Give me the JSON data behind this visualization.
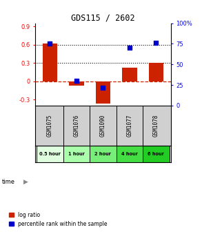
{
  "title": "GDS115 / 2602",
  "samples": [
    "GSM1075",
    "GSM1076",
    "GSM1090",
    "GSM1077",
    "GSM1078"
  ],
  "time_labels": [
    "0.5 hour",
    "1 hour",
    "2 hour",
    "4 hour",
    "6 hour"
  ],
  "time_colors": [
    "#dfffdf",
    "#aaffaa",
    "#77ee77",
    "#44dd44",
    "#22cc22"
  ],
  "log_ratios": [
    0.62,
    -0.07,
    -0.37,
    0.22,
    0.3
  ],
  "percentile_ranks": [
    75,
    30,
    22,
    70,
    76
  ],
  "bar_color": "#cc2200",
  "dot_color": "#0000cc",
  "ylim_left": [
    -0.4,
    0.95
  ],
  "ylim_right": [
    0,
    100
  ],
  "yticks_left": [
    -0.3,
    0.0,
    0.3,
    0.6,
    0.9
  ],
  "yticks_right": [
    0,
    25,
    50,
    75,
    100
  ],
  "ytick_labels_left": [
    "-0.3",
    "0",
    "0.3",
    "0.6",
    "0.9"
  ],
  "ytick_labels_right": [
    "0",
    "25",
    "50",
    "75",
    "100%"
  ],
  "hlines": [
    0.6,
    0.3
  ],
  "sample_bg_color": "#d0d0d0",
  "bar_width": 0.55,
  "dot_size": 25,
  "legend_log_label": "log ratio",
  "legend_pct_label": "percentile rank within the sample",
  "time_row_label": "time"
}
